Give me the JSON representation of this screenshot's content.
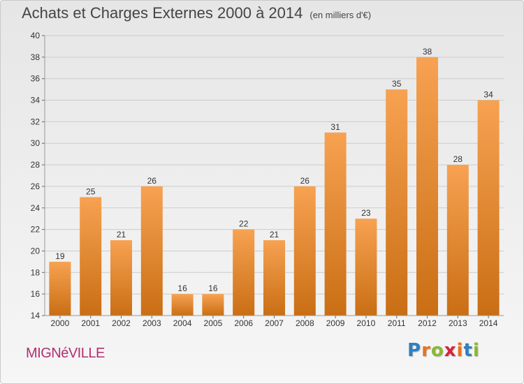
{
  "header": {
    "title": "Achats et Charges Externes 2000 à 2014",
    "subtitle": "(en milliers d'€)"
  },
  "footer": {
    "commune": "MIGNéVILLE",
    "brand": "Proxiti",
    "brand_letters": [
      "P",
      "r",
      "o",
      "x",
      "i",
      "t",
      "i"
    ],
    "brand_colors": [
      "#2f7fc1",
      "#e8731c",
      "#8ab833",
      "#d9223c",
      "#e8731c",
      "#2f7fc1",
      "#8ab833"
    ]
  },
  "colors": {
    "bar_light": "#f7a252",
    "bar_dark": "#c96e14",
    "grid": "#cccccc",
    "axis_text": "#333333"
  },
  "chart_data": {
    "type": "bar",
    "title": "Achats et Charges Externes 2000 à 2014",
    "subtitle": "(en milliers d'€)",
    "categories": [
      "2000",
      "2001",
      "2002",
      "2003",
      "2004",
      "2005",
      "2006",
      "2007",
      "2008",
      "2009",
      "2010",
      "2011",
      "2012",
      "2013",
      "2014"
    ],
    "values": [
      19,
      25,
      21,
      26,
      16,
      16,
      22,
      21,
      26,
      31,
      23,
      35,
      38,
      28,
      34
    ],
    "ylim": [
      14,
      40
    ],
    "yticks": [
      14,
      16,
      18,
      20,
      22,
      24,
      26,
      28,
      30,
      32,
      34,
      36,
      38,
      40
    ],
    "grid": true,
    "data_labels": true
  }
}
